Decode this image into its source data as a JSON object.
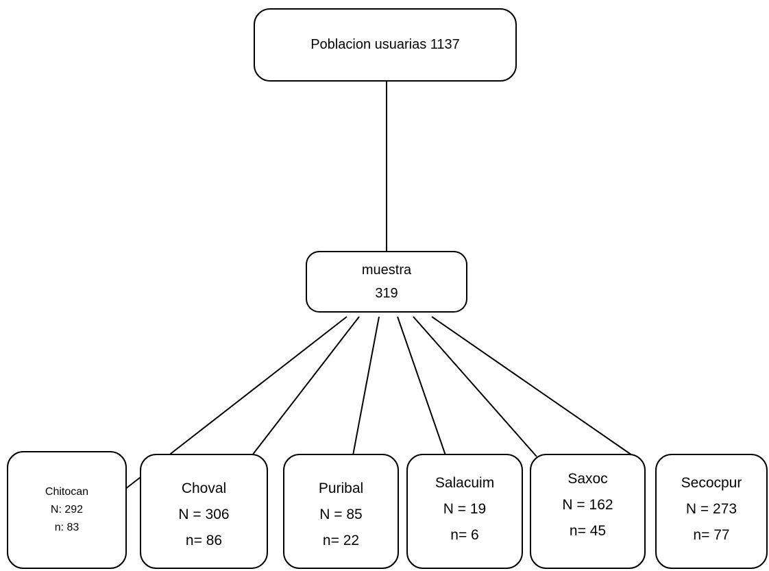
{
  "root": {
    "label": "Poblacion usuarias 1137"
  },
  "sample": {
    "label": "muestra",
    "value": "319"
  },
  "groups": [
    {
      "name": "Chitocan",
      "N": "N: 292",
      "n": "n: 83"
    },
    {
      "name": "Choval",
      "N": "N = 306",
      "n": "n= 86"
    },
    {
      "name": "Puribal",
      "N": "N = 85",
      "n": "n= 22"
    },
    {
      "name": "Salacuim",
      "N": "N = 19",
      "n": "n= 6"
    },
    {
      "name": "Saxoc",
      "N": "N = 162",
      "n": "n= 45"
    },
    {
      "name": "Secocpur",
      "N": "N = 273",
      "n": "n= 77"
    }
  ]
}
